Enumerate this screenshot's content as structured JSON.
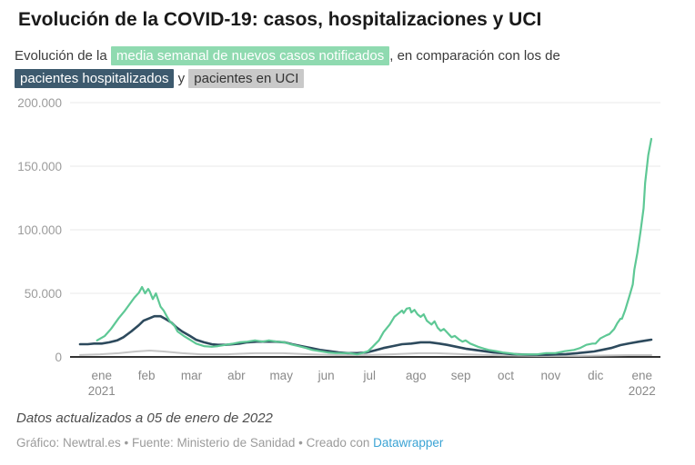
{
  "header": {
    "title": "Evolución de la COVID-19: casos, hospitalizaciones y UCI",
    "subtitle": {
      "prefix": "Evolución de la ",
      "chip_casos": "media semanal de nuevos casos notificados",
      "middle": ", en comparación con los de",
      "chip_hosp": "pacientes hospitalizados",
      "conjunction": " y ",
      "chip_uci": "pacientes en UCI"
    }
  },
  "colors": {
    "casos_line": "#5ec895",
    "casos_chip_bg": "#8fdab0",
    "hospitalizados_line": "#2d4a5d",
    "hospitalizados_chip_bg": "#3d5a6e",
    "uci_line": "#c5c5c5",
    "uci_chip_bg": "#c9c9c9",
    "gridline": "#e9e9e9",
    "baseline": "#333333",
    "link": "#3aa3d4"
  },
  "footer": {
    "updated": "Datos actualizados a 05 de enero de 2022",
    "credit_prefix": "Gráfico: Newtral.es • Fuente: Ministerio de Sanidad • Creado con ",
    "datawrapper_label": "Datawrapper"
  },
  "chart_data": {
    "type": "line",
    "title": "Evolución de la COVID-19: casos, hospitalizaciones y UCI",
    "x_unit": "días desde el 1 de enero de 2021",
    "x_range": [
      0,
      369
    ],
    "ylim": [
      0,
      200000
    ],
    "grid": true,
    "legend_position": "in-subtitle",
    "y_ticks": [
      {
        "value": 0,
        "label": "0"
      },
      {
        "value": 50000,
        "label": "50.000"
      },
      {
        "value": 100000,
        "label": "100.000"
      },
      {
        "value": 150000,
        "label": "150.000"
      },
      {
        "value": 200000,
        "label": "200.000"
      }
    ],
    "x_ticks": [
      {
        "label": "ene",
        "sublabel": "2021",
        "day": 14
      },
      {
        "label": "feb",
        "day": 43
      },
      {
        "label": "mar",
        "day": 72
      },
      {
        "label": "abr",
        "day": 101
      },
      {
        "label": "may",
        "day": 130
      },
      {
        "label": "jun",
        "day": 159
      },
      {
        "label": "jul",
        "day": 187
      },
      {
        "label": "ago",
        "day": 217
      },
      {
        "label": "sep",
        "day": 246
      },
      {
        "label": "oct",
        "day": 275
      },
      {
        "label": "nov",
        "day": 304
      },
      {
        "label": "dic",
        "day": 333
      },
      {
        "label": "ene",
        "sublabel": "2022",
        "day": 363
      }
    ],
    "series": [
      {
        "name": "pacientes en UCI",
        "color_key": "uci_line",
        "stroke_width": 2,
        "points": [
          [
            0,
            1500
          ],
          [
            13,
            2100
          ],
          [
            25,
            2900
          ],
          [
            36,
            4300
          ],
          [
            45,
            5000
          ],
          [
            54,
            4300
          ],
          [
            66,
            2900
          ],
          [
            78,
            2100
          ],
          [
            95,
            2100
          ],
          [
            113,
            2900
          ],
          [
            131,
            2900
          ],
          [
            148,
            2100
          ],
          [
            166,
            1400
          ],
          [
            183,
            1400
          ],
          [
            201,
            2100
          ],
          [
            219,
            2900
          ],
          [
            230,
            2900
          ],
          [
            248,
            2100
          ],
          [
            266,
            1400
          ],
          [
            283,
            1100
          ],
          [
            301,
            800
          ],
          [
            319,
            800
          ],
          [
            336,
            1100
          ],
          [
            354,
            1400
          ],
          [
            369,
            1400
          ]
        ]
      },
      {
        "name": "pacientes hospitalizados",
        "color_key": "hospitalizados_line",
        "stroke_width": 2.6,
        "points": [
          [
            0,
            10000
          ],
          [
            5,
            10000
          ],
          [
            9,
            10500
          ],
          [
            14,
            10500
          ],
          [
            19,
            11500
          ],
          [
            24,
            13000
          ],
          [
            28,
            15500
          ],
          [
            33,
            20000
          ],
          [
            38,
            25000
          ],
          [
            41,
            28500
          ],
          [
            45,
            30500
          ],
          [
            48,
            32000
          ],
          [
            52,
            32000
          ],
          [
            55,
            30000
          ],
          [
            59,
            27000
          ],
          [
            62,
            23500
          ],
          [
            66,
            20000
          ],
          [
            71,
            16500
          ],
          [
            75,
            13500
          ],
          [
            80,
            11500
          ],
          [
            85,
            10000
          ],
          [
            89,
            9500
          ],
          [
            94,
            9500
          ],
          [
            99,
            10000
          ],
          [
            103,
            10500
          ],
          [
            108,
            11500
          ],
          [
            114,
            12000
          ],
          [
            120,
            12000
          ],
          [
            126,
            12000
          ],
          [
            132,
            11500
          ],
          [
            137,
            10000
          ],
          [
            143,
            8500
          ],
          [
            149,
            7000
          ],
          [
            155,
            5500
          ],
          [
            161,
            4500
          ],
          [
            167,
            3500
          ],
          [
            173,
            3000
          ],
          [
            179,
            3000
          ],
          [
            185,
            3500
          ],
          [
            190,
            5000
          ],
          [
            196,
            7000
          ],
          [
            202,
            8500
          ],
          [
            208,
            10000
          ],
          [
            214,
            10500
          ],
          [
            220,
            11500
          ],
          [
            226,
            11500
          ],
          [
            232,
            10500
          ],
          [
            237,
            9500
          ],
          [
            243,
            8000
          ],
          [
            249,
            6500
          ],
          [
            255,
            5500
          ],
          [
            261,
            4500
          ],
          [
            267,
            3500
          ],
          [
            273,
            3000
          ],
          [
            279,
            2200
          ],
          [
            284,
            2000
          ],
          [
            290,
            1800
          ],
          [
            296,
            1700
          ],
          [
            302,
            1700
          ],
          [
            308,
            2000
          ],
          [
            314,
            2200
          ],
          [
            320,
            2800
          ],
          [
            326,
            3500
          ],
          [
            332,
            4300
          ],
          [
            337,
            5500
          ],
          [
            343,
            7000
          ],
          [
            349,
            9300
          ],
          [
            355,
            10700
          ],
          [
            361,
            12000
          ],
          [
            366,
            13000
          ],
          [
            369,
            13600
          ]
        ]
      },
      {
        "name": "media semanal de nuevos casos notificados",
        "color_key": "casos_line",
        "stroke_width": 2.2,
        "points": [
          [
            11,
            13000
          ],
          [
            16,
            16500
          ],
          [
            20,
            22000
          ],
          [
            25,
            30500
          ],
          [
            29,
            36500
          ],
          [
            32,
            41500
          ],
          [
            35,
            46500
          ],
          [
            38,
            50500
          ],
          [
            40,
            55000
          ],
          [
            42,
            50000
          ],
          [
            44,
            53500
          ],
          [
            45,
            51500
          ],
          [
            47,
            45500
          ],
          [
            49,
            50000
          ],
          [
            51,
            43000
          ],
          [
            52,
            39500
          ],
          [
            54,
            36500
          ],
          [
            56,
            32000
          ],
          [
            58,
            28000
          ],
          [
            61,
            24500
          ],
          [
            63,
            20000
          ],
          [
            67,
            16500
          ],
          [
            71,
            13500
          ],
          [
            75,
            10500
          ],
          [
            80,
            8500
          ],
          [
            85,
            8000
          ],
          [
            89,
            8500
          ],
          [
            94,
            9500
          ],
          [
            99,
            10500
          ],
          [
            103,
            11500
          ],
          [
            108,
            12000
          ],
          [
            113,
            13000
          ],
          [
            118,
            12000
          ],
          [
            122,
            13000
          ],
          [
            127,
            12000
          ],
          [
            132,
            11500
          ],
          [
            136,
            10000
          ],
          [
            141,
            8500
          ],
          [
            146,
            7000
          ],
          [
            150,
            5500
          ],
          [
            155,
            4500
          ],
          [
            160,
            3500
          ],
          [
            165,
            3000
          ],
          [
            169,
            3000
          ],
          [
            174,
            3000
          ],
          [
            179,
            2000
          ],
          [
            182,
            3000
          ],
          [
            186,
            4500
          ],
          [
            189,
            8000
          ],
          [
            193,
            13000
          ],
          [
            196,
            19500
          ],
          [
            200,
            25500
          ],
          [
            203,
            31500
          ],
          [
            206,
            34500
          ],
          [
            208,
            36500
          ],
          [
            209,
            34500
          ],
          [
            211,
            38000
          ],
          [
            213,
            38500
          ],
          [
            214,
            35000
          ],
          [
            216,
            37000
          ],
          [
            218,
            33500
          ],
          [
            220,
            31500
          ],
          [
            222,
            33500
          ],
          [
            224,
            28500
          ],
          [
            227,
            25500
          ],
          [
            229,
            28000
          ],
          [
            231,
            23000
          ],
          [
            233,
            20500
          ],
          [
            235,
            22000
          ],
          [
            238,
            18000
          ],
          [
            240,
            15500
          ],
          [
            242,
            16500
          ],
          [
            245,
            13500
          ],
          [
            247,
            12000
          ],
          [
            249,
            13000
          ],
          [
            252,
            10500
          ],
          [
            254,
            9500
          ],
          [
            257,
            8000
          ],
          [
            261,
            6500
          ],
          [
            264,
            5500
          ],
          [
            269,
            4500
          ],
          [
            273,
            3500
          ],
          [
            277,
            3000
          ],
          [
            283,
            2000
          ],
          [
            289,
            2000
          ],
          [
            295,
            2000
          ],
          [
            301,
            3000
          ],
          [
            307,
            3000
          ],
          [
            313,
            4500
          ],
          [
            319,
            5500
          ],
          [
            323,
            7000
          ],
          [
            327,
            9500
          ],
          [
            331,
            10500
          ],
          [
            333,
            10500
          ],
          [
            336,
            14500
          ],
          [
            340,
            17000
          ],
          [
            342,
            18000
          ],
          [
            345,
            22000
          ],
          [
            347,
            26500
          ],
          [
            349,
            30000
          ],
          [
            350,
            30000
          ],
          [
            352,
            36500
          ],
          [
            353,
            40500
          ],
          [
            355,
            48500
          ],
          [
            357,
            57000
          ],
          [
            358,
            68500
          ],
          [
            360,
            82000
          ],
          [
            362,
            98500
          ],
          [
            364,
            117000
          ],
          [
            365,
            137000
          ],
          [
            367,
            158500
          ],
          [
            369,
            171500
          ]
        ]
      }
    ]
  }
}
